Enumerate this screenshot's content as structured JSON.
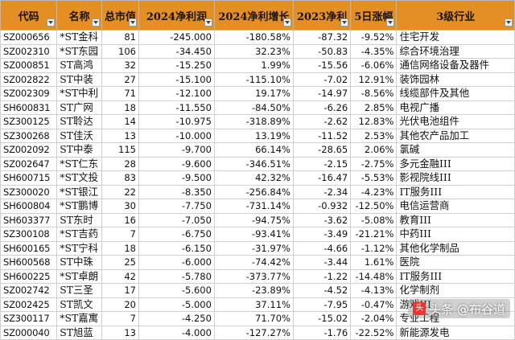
{
  "headers": [
    "代码",
    "名称",
    "总市值",
    "2024净利润",
    "2024净利增长",
    "2023净利",
    "5日涨幅",
    "3级行业"
  ],
  "rows": [
    [
      "SZ000656",
      "*ST金科",
      "81",
      "-245.000",
      "-180.58%",
      "-87.32",
      "-9.52%",
      "住宅开发"
    ],
    [
      "SZ002310",
      "*ST东园",
      "106",
      "-34.450",
      "32.23%",
      "-50.83",
      "-4.35%",
      "综合环境治理"
    ],
    [
      "SZ000851",
      "ST高鸿",
      "32",
      "-15.250",
      "1.99%",
      "-15.56",
      "-6.06%",
      "通信网络设备及器件"
    ],
    [
      "SZ002822",
      "ST中装",
      "27",
      "-15.100",
      "-115.10%",
      "-7.02",
      "12.91%",
      "装饰园林"
    ],
    [
      "SZ002309",
      "*ST中利",
      "71",
      "-12.100",
      "19.17%",
      "-14.97",
      "-8.56%",
      "线缆部件及其他"
    ],
    [
      "SH600831",
      "ST广网",
      "18",
      "-11.550",
      "-84.50%",
      "-6.26",
      "2.85%",
      "电视广播"
    ],
    [
      "SZ300125",
      "ST聆达",
      "14",
      "-10.975",
      "-318.89%",
      "-2.62",
      "12.83%",
      "光伏电池组件"
    ],
    [
      "SZ300268",
      "ST佳沃",
      "13",
      "-10.000",
      "13.19%",
      "-11.52",
      "2.53%",
      "其他农产品加工"
    ],
    [
      "SZ002092",
      "ST中泰",
      "115",
      "-9.700",
      "66.14%",
      "-28.65",
      "2.06%",
      "氯碱"
    ],
    [
      "SZ002647",
      "*ST仁东",
      "28",
      "-9.600",
      "-346.51%",
      "-2.15",
      "-2.75%",
      "多元金融III"
    ],
    [
      "SH600715",
      "*ST文投",
      "83",
      "-9.500",
      "42.32%",
      "-16.47",
      "-5.53%",
      "影视院线III"
    ],
    [
      "SZ300020",
      "*ST银江",
      "22",
      "-8.350",
      "-256.84%",
      "-2.34",
      "-4.23%",
      "IT服务III"
    ],
    [
      "SH600804",
      "*ST鹏博",
      "30",
      "-7.750",
      "-731.14%",
      "-0.932",
      "-12.50%",
      "电信运营商"
    ],
    [
      "SH603377",
      "ST东时",
      "16",
      "-7.050",
      "-94.75%",
      "-3.62",
      "-5.08%",
      "教育III"
    ],
    [
      "SZ300108",
      "*ST吉药",
      "7",
      "-6.750",
      "-93.41%",
      "-3.49",
      "-21.21%",
      "中药III"
    ],
    [
      "SH600165",
      "*ST宁科",
      "18",
      "-6.150",
      "-31.97%",
      "-4.66",
      "-1.12%",
      "其他化学制品"
    ],
    [
      "SH600568",
      "ST中珠",
      "25",
      "-6.000",
      "-74.42%",
      "-3.44",
      "1.61%",
      "医院"
    ],
    [
      "SH600225",
      "*ST卓朗",
      "42",
      "-5.780",
      "-373.77%",
      "-1.22",
      "-14.48%",
      "IT服务III"
    ],
    [
      "SZ002742",
      "ST三圣",
      "17",
      "-5.600",
      "-23.89%",
      "-4.52",
      "-4.13%",
      "化学制剂"
    ],
    [
      "SZ002425",
      "ST凯文",
      "20",
      "-5.000",
      "37.11%",
      "-7.95",
      "-0.47%",
      "游戏III"
    ],
    [
      "SZ300117",
      "*ST嘉寓",
      "7",
      "-4.250",
      "71.70%",
      "-15.02",
      "-2.04%",
      "专业工程"
    ],
    [
      "SZ000040",
      "ST旭蓝",
      "13",
      "-4.000",
      "-127.27%",
      "-1.76",
      "-22.52%",
      "新能源发电"
    ]
  ],
  "watermark": {
    "text": "头条 @布谷道",
    "logo_char": "头"
  },
  "colors": {
    "header_bg": "#e48f24",
    "grid": "#cfcfcf"
  }
}
